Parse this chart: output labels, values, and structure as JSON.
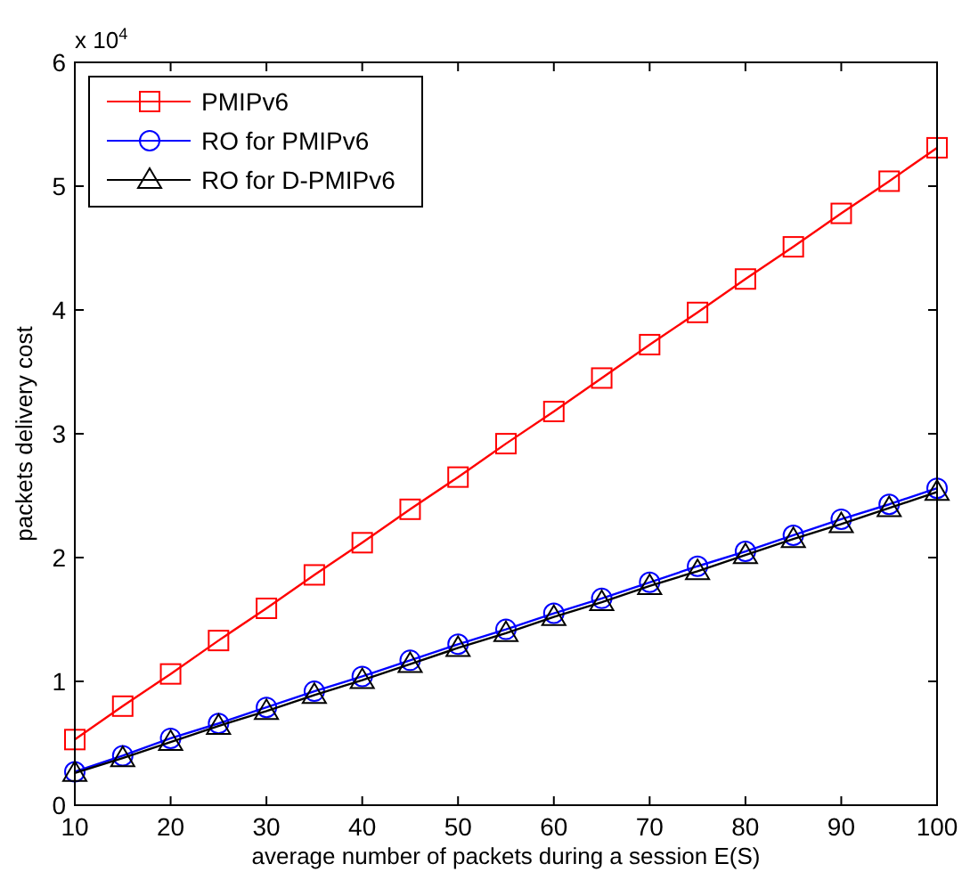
{
  "chart_data": {
    "type": "line",
    "xlabel": "average number of packets during a session E(S)",
    "ylabel": "packets delivery cost",
    "annotations": [
      "x 10$^{4}$"
    ],
    "x": [
      10,
      15,
      20,
      25,
      30,
      35,
      40,
      45,
      50,
      55,
      60,
      65,
      70,
      75,
      80,
      85,
      90,
      95,
      100
    ],
    "series": [
      {
        "name": "PMIPv6",
        "color": "#ff0000",
        "marker": "square",
        "values": [
          0.53,
          0.8,
          1.06,
          1.33,
          1.59,
          1.86,
          2.12,
          2.39,
          2.65,
          2.92,
          3.18,
          3.45,
          3.72,
          3.98,
          4.25,
          4.51,
          4.78,
          5.04,
          5.31
        ]
      },
      {
        "name": "RO for PMIPv6",
        "color": "#0000ff",
        "marker": "circle",
        "values": [
          0.27,
          0.4,
          0.54,
          0.66,
          0.79,
          0.92,
          1.04,
          1.17,
          1.3,
          1.42,
          1.55,
          1.67,
          1.8,
          1.93,
          2.05,
          2.18,
          2.31,
          2.43,
          2.56
        ]
      },
      {
        "name": "RO for D-PMIPv6",
        "color": "#000000",
        "marker": "triangle",
        "values": [
          0.26,
          0.38,
          0.51,
          0.64,
          0.76,
          0.89,
          1.01,
          1.14,
          1.27,
          1.39,
          1.52,
          1.64,
          1.77,
          1.89,
          2.02,
          2.15,
          2.27,
          2.4,
          2.53
        ]
      }
    ],
    "xlim": [
      10,
      100
    ],
    "xticks": [
      10,
      20,
      30,
      40,
      50,
      60,
      70,
      80,
      90,
      100
    ],
    "ylim": [
      0,
      6
    ],
    "yticks": [
      0,
      1,
      2,
      3,
      4,
      5,
      6
    ],
    "grid": false,
    "legend": "top left",
    "line_style": "solid"
  }
}
